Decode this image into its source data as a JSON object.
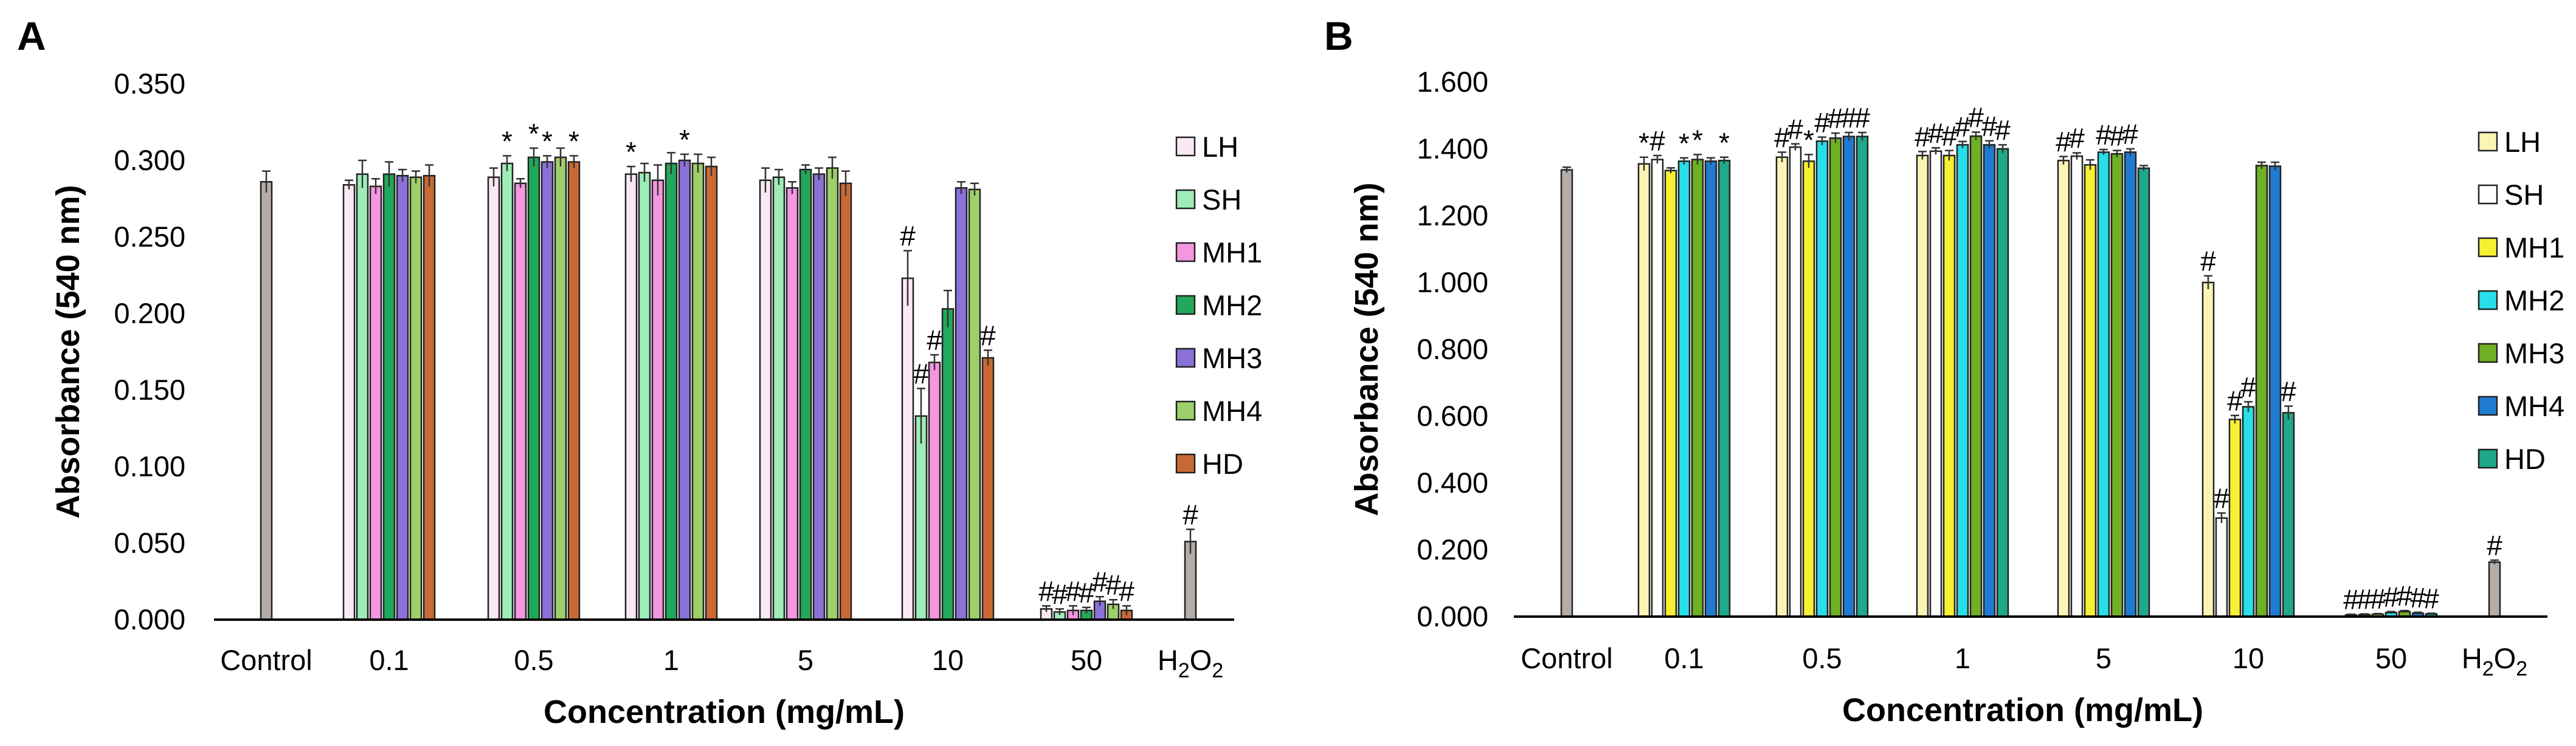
{
  "chart_data": [
    {
      "panel_label": "A",
      "type": "bar",
      "xlabel": "Concentration (mg/mL)",
      "ylabel": "Absorbance (540 nm)",
      "ylim": [
        0,
        0.35
      ],
      "yticks": [
        "0.000",
        "0.050",
        "0.100",
        "0.150",
        "0.200",
        "0.250",
        "0.300",
        "0.350"
      ],
      "ytick_values": [
        0,
        0.05,
        0.1,
        0.15,
        0.2,
        0.25,
        0.3,
        0.35
      ],
      "legend_position": "right",
      "control": {
        "label": "Control",
        "value": 0.286,
        "err": 0.007,
        "color": "#b5aca7",
        "sig": ""
      },
      "h2o2": {
        "label_main": "H",
        "label_sub": "2",
        "label_end": "O",
        "label_sub2": "2",
        "value": 0.051,
        "err": 0.008,
        "color": "#b5aca7",
        "sig": "#"
      },
      "categories": [
        "0.1",
        "0.5",
        "1",
        "5",
        "10",
        "50"
      ],
      "series": [
        {
          "name": "LH",
          "color": "#fbe8f5",
          "values": [
            0.284,
            0.289,
            0.291,
            0.287,
            0.223,
            0.007
          ],
          "errors": [
            0.003,
            0.006,
            0.005,
            0.008,
            0.018,
            0.002
          ],
          "sig": [
            "",
            "",
            "*",
            "",
            "#",
            "#"
          ]
        },
        {
          "name": "SH",
          "color": "#9eecb8",
          "values": [
            0.291,
            0.298,
            0.292,
            0.289,
            0.133,
            0.005
          ],
          "errors": [
            0.009,
            0.005,
            0.006,
            0.005,
            0.018,
            0.002
          ],
          "sig": [
            "",
            "*",
            "",
            "",
            "#",
            "#"
          ]
        },
        {
          "name": "MH1",
          "color": "#f596e0",
          "values": [
            0.283,
            0.285,
            0.287,
            0.282,
            0.168,
            0.006
          ],
          "errors": [
            0.005,
            0.003,
            0.01,
            0.004,
            0.005,
            0.003
          ],
          "sig": [
            "",
            "",
            "",
            "",
            "#",
            "#"
          ]
        },
        {
          "name": "MH2",
          "color": "#22a85a",
          "values": [
            0.291,
            0.302,
            0.298,
            0.294,
            0.203,
            0.006
          ],
          "errors": [
            0.008,
            0.006,
            0.007,
            0.003,
            0.012,
            0.002
          ],
          "sig": [
            "",
            "*",
            "",
            "",
            "",
            "#"
          ]
        },
        {
          "name": "MH3",
          "color": "#8a72d8",
          "values": [
            0.29,
            0.299,
            0.3,
            0.291,
            0.282,
            0.012
          ],
          "errors": [
            0.004,
            0.004,
            0.004,
            0.004,
            0.004,
            0.003
          ],
          "sig": [
            "",
            "*",
            "*",
            "",
            "",
            "#"
          ]
        },
        {
          "name": "MH4",
          "color": "#9ed06a",
          "values": [
            0.289,
            0.302,
            0.298,
            0.295,
            0.281,
            0.01
          ],
          "errors": [
            0.004,
            0.006,
            0.006,
            0.007,
            0.004,
            0.003
          ],
          "sig": [
            "",
            "",
            "",
            "",
            "",
            "#"
          ]
        },
        {
          "name": "HD",
          "color": "#c96a34",
          "values": [
            0.29,
            0.299,
            0.296,
            0.285,
            0.171,
            0.006
          ],
          "errors": [
            0.007,
            0.004,
            0.006,
            0.008,
            0.005,
            0.003
          ],
          "sig": [
            "",
            "*",
            "",
            "",
            "#",
            "#"
          ]
        }
      ]
    },
    {
      "panel_label": "B",
      "type": "bar",
      "xlabel": "Concentration (mg/mL)",
      "ylabel": "Absorbance (540 nm)",
      "ylim": [
        0,
        1.6
      ],
      "yticks": [
        "0.000",
        "0.200",
        "0.400",
        "0.600",
        "0.800",
        "1.000",
        "1.200",
        "1.400",
        "1.600"
      ],
      "ytick_values": [
        0,
        0.2,
        0.4,
        0.6,
        0.8,
        1.0,
        1.2,
        1.4,
        1.6
      ],
      "legend_position": "right",
      "control": {
        "label": "Control",
        "value": 1.337,
        "err": 0.008,
        "color": "#b5aca7",
        "sig": ""
      },
      "h2o2": {
        "label_main": "H",
        "label_sub": "2",
        "label_end": "O",
        "label_sub2": "2",
        "value": 0.163,
        "err": 0.006,
        "color": "#b5aca7",
        "sig": "#"
      },
      "categories": [
        "0.1",
        "0.5",
        "1",
        "5",
        "10",
        "50"
      ],
      "series": [
        {
          "name": "LH",
          "color": "#fbf4b5",
          "values": [
            1.355,
            1.375,
            1.38,
            1.365,
            1.0,
            0.005
          ],
          "errors": [
            0.02,
            0.015,
            0.012,
            0.012,
            0.02,
            0.002
          ],
          "sig": [
            "*",
            "#",
            "#",
            "#",
            "#",
            "#"
          ]
        },
        {
          "name": "SH",
          "color": "#ffffff",
          "values": [
            1.368,
            1.405,
            1.393,
            1.378,
            0.295,
            0.006
          ],
          "errors": [
            0.012,
            0.01,
            0.01,
            0.01,
            0.015,
            0.002
          ],
          "sig": [
            "#",
            "#",
            "#",
            "#",
            "#",
            "#"
          ]
        },
        {
          "name": "MH1",
          "color": "#f7f032",
          "values": [
            1.335,
            1.363,
            1.38,
            1.352,
            0.59,
            0.007
          ],
          "errors": [
            0.008,
            0.02,
            0.015,
            0.015,
            0.012,
            0.002
          ],
          "sig": [
            "",
            "*",
            "#",
            "",
            "#",
            "#"
          ]
        },
        {
          "name": "MH2",
          "color": "#27dfe8",
          "values": [
            1.363,
            1.423,
            1.412,
            1.39,
            0.628,
            0.012
          ],
          "errors": [
            0.01,
            0.012,
            0.01,
            0.008,
            0.015,
            0.003
          ],
          "sig": [
            "*",
            "#",
            "#",
            "#",
            "#",
            "#"
          ]
        },
        {
          "name": "MH3",
          "color": "#6fb024",
          "values": [
            1.368,
            1.432,
            1.438,
            1.385,
            1.35,
            0.015
          ],
          "errors": [
            0.015,
            0.015,
            0.012,
            0.01,
            0.01,
            0.003
          ],
          "sig": [
            "*",
            "#",
            "#",
            "#",
            "",
            "#"
          ]
        },
        {
          "name": "MH4",
          "color": "#1f7bd1",
          "values": [
            1.363,
            1.437,
            1.412,
            1.39,
            1.348,
            0.01
          ],
          "errors": [
            0.01,
            0.012,
            0.012,
            0.01,
            0.012,
            0.003
          ],
          "sig": [
            "",
            "#",
            "#",
            "#",
            "",
            "#"
          ]
        },
        {
          "name": "HD",
          "color": "#1fa88a",
          "values": [
            1.365,
            1.437,
            1.4,
            1.342,
            0.61,
            0.008
          ],
          "errors": [
            0.01,
            0.012,
            0.012,
            0.008,
            0.02,
            0.002
          ],
          "sig": [
            "*",
            "#",
            "#",
            "",
            "#",
            "#"
          ]
        }
      ]
    }
  ]
}
